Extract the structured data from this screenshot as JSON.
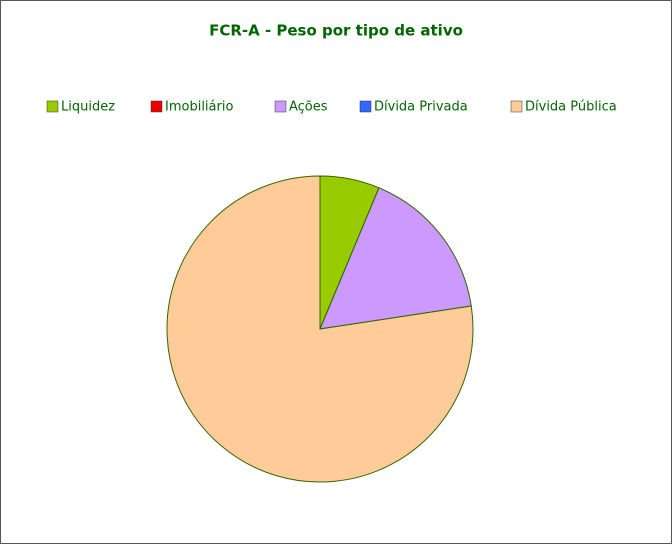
{
  "chart_data": {
    "type": "pie",
    "title": "FCR-A - Peso por tipo de ativo",
    "categories": [
      "Liquidez",
      "Imobiliário",
      "Ações",
      "Dívida Privada",
      "Dívida Pública"
    ],
    "values": [
      6.3,
      0,
      16.3,
      0,
      77.4
    ],
    "colors": [
      "#99cc00",
      "#ee0000",
      "#cc99ff",
      "#3366ff",
      "#ffcc99"
    ],
    "legend": "top"
  }
}
